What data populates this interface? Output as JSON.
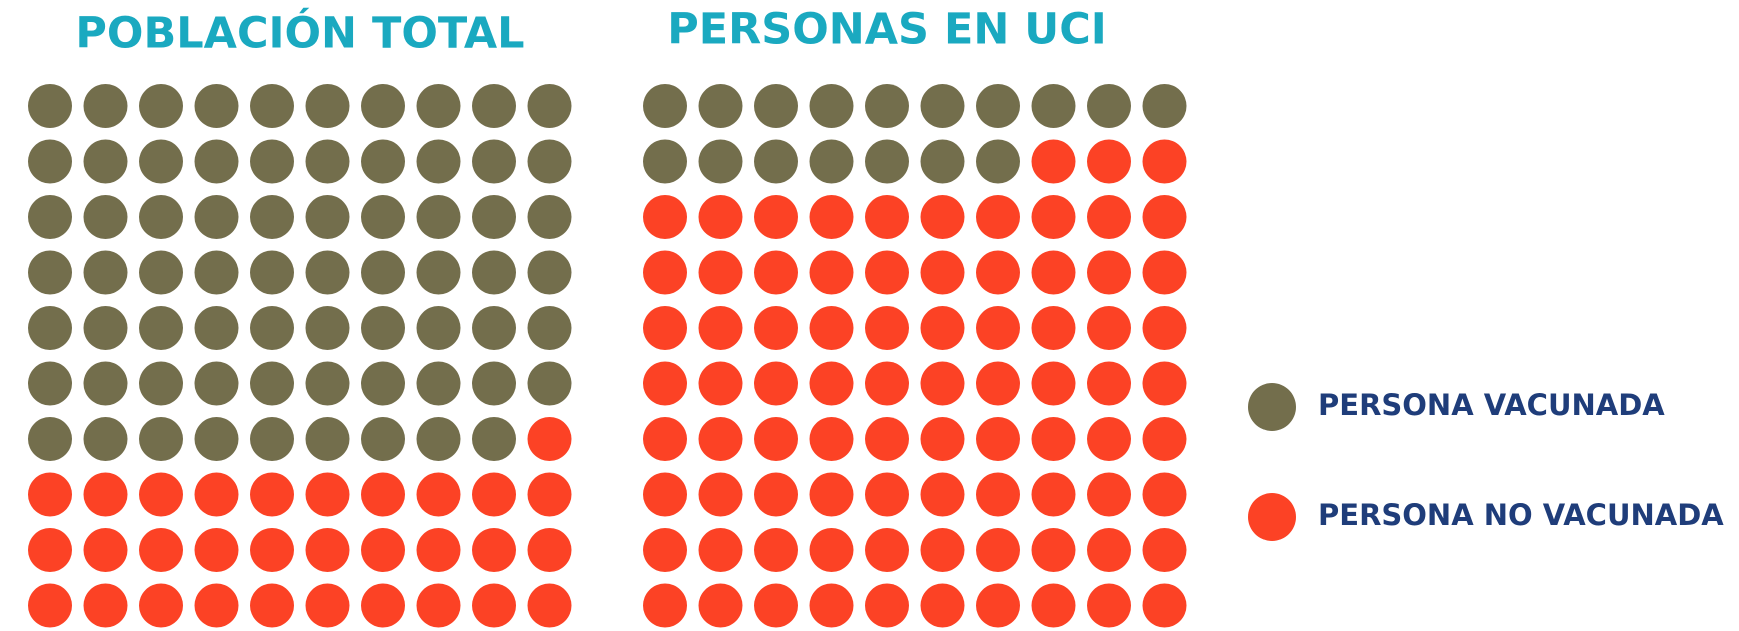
{
  "chart_data": [
    {
      "type": "waffle",
      "title": "POBLACIÓN TOTAL",
      "values": [
        69,
        31
      ]
    },
    {
      "type": "waffle",
      "title": "PERSONAS EN UCI",
      "values": [
        17,
        83
      ]
    }
  ],
  "legend": {
    "entries": [
      {
        "name": "PERSONA VACUNADA",
        "color": "#736e4c"
      },
      {
        "name": "PERSONA NO VACUNADA",
        "color": "#fc4225"
      }
    ]
  }
}
